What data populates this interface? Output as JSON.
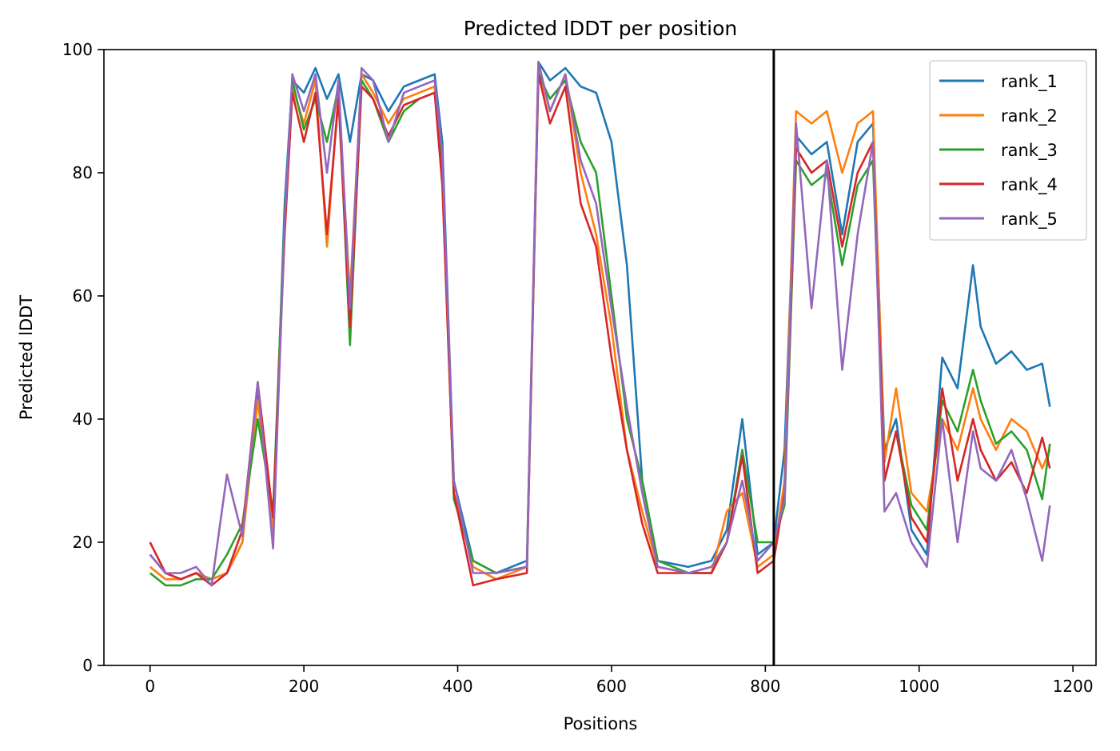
{
  "chart_data": {
    "type": "line",
    "title": "Predicted lDDT per position",
    "xlabel": "Positions",
    "ylabel": "Predicted lDDT",
    "xlim": [
      -60,
      1230
    ],
    "ylim": [
      0,
      100
    ],
    "xticks": [
      0,
      200,
      400,
      600,
      800,
      1000,
      1200
    ],
    "yticks": [
      0,
      20,
      40,
      60,
      80,
      100
    ],
    "grid": false,
    "legend_position": "top-right",
    "vline_x": 811,
    "series": [
      {
        "name": "rank_1",
        "color": "#1f77b4",
        "x": [
          0,
          20,
          40,
          60,
          80,
          100,
          120,
          140,
          160,
          175,
          185,
          200,
          215,
          230,
          245,
          260,
          275,
          290,
          310,
          330,
          350,
          370,
          380,
          395,
          420,
          450,
          490,
          505,
          520,
          540,
          560,
          580,
          600,
          620,
          640,
          660,
          700,
          730,
          750,
          770,
          790,
          811,
          825,
          840,
          860,
          880,
          900,
          920,
          940,
          955,
          970,
          990,
          1010,
          1030,
          1050,
          1070,
          1080,
          1100,
          1120,
          1140,
          1160,
          1170
        ],
        "y": [
          18,
          15,
          14,
          15,
          14,
          15,
          20,
          45,
          22,
          75,
          95,
          93,
          97,
          92,
          96,
          85,
          96,
          95,
          90,
          94,
          95,
          96,
          85,
          30,
          17,
          15,
          17,
          98,
          95,
          97,
          94,
          93,
          85,
          65,
          30,
          17,
          16,
          17,
          22,
          40,
          18,
          20,
          35,
          86,
          83,
          85,
          70,
          85,
          88,
          35,
          40,
          22,
          18,
          50,
          45,
          65,
          55,
          49,
          51,
          48,
          49,
          42
        ]
      },
      {
        "name": "rank_2",
        "color": "#ff7f0e",
        "x": [
          0,
          20,
          40,
          60,
          80,
          100,
          120,
          140,
          160,
          175,
          185,
          200,
          215,
          230,
          245,
          260,
          275,
          290,
          310,
          330,
          350,
          370,
          380,
          395,
          420,
          450,
          490,
          505,
          520,
          540,
          560,
          580,
          600,
          620,
          640,
          660,
          700,
          730,
          750,
          770,
          790,
          811,
          825,
          840,
          860,
          880,
          900,
          920,
          940,
          955,
          970,
          990,
          1010,
          1030,
          1050,
          1070,
          1080,
          1100,
          1120,
          1140,
          1160,
          1170
        ],
        "y": [
          16,
          14,
          14,
          15,
          14,
          15,
          20,
          43,
          22,
          72,
          94,
          88,
          95,
          68,
          93,
          60,
          96,
          93,
          88,
          92,
          93,
          94,
          80,
          28,
          16,
          14,
          16,
          97,
          90,
          96,
          80,
          70,
          55,
          35,
          25,
          16,
          15,
          15,
          25,
          28,
          16,
          18,
          30,
          90,
          88,
          90,
          80,
          88,
          90,
          33,
          45,
          28,
          25,
          40,
          35,
          45,
          40,
          35,
          40,
          38,
          32,
          35
        ]
      },
      {
        "name": "rank_3",
        "color": "#2ca02c",
        "x": [
          0,
          20,
          40,
          60,
          80,
          100,
          120,
          140,
          160,
          175,
          185,
          200,
          215,
          230,
          245,
          260,
          275,
          290,
          310,
          330,
          350,
          370,
          380,
          395,
          420,
          450,
          490,
          505,
          520,
          540,
          560,
          580,
          600,
          620,
          640,
          660,
          700,
          730,
          750,
          770,
          790,
          811,
          825,
          840,
          860,
          880,
          900,
          920,
          940,
          955,
          970,
          990,
          1010,
          1030,
          1050,
          1070,
          1080,
          1100,
          1120,
          1140,
          1160,
          1170
        ],
        "y": [
          15,
          13,
          13,
          14,
          14,
          18,
          23,
          40,
          25,
          73,
          95,
          87,
          92,
          85,
          94,
          52,
          95,
          92,
          85,
          90,
          92,
          93,
          82,
          27,
          17,
          15,
          16,
          96,
          92,
          95,
          85,
          80,
          60,
          40,
          30,
          17,
          15,
          15,
          20,
          35,
          20,
          20,
          26,
          82,
          78,
          80,
          65,
          78,
          82,
          30,
          38,
          26,
          22,
          43,
          38,
          48,
          43,
          36,
          38,
          35,
          27,
          36
        ]
      },
      {
        "name": "rank_4",
        "color": "#d62728",
        "x": [
          0,
          20,
          40,
          60,
          80,
          100,
          120,
          140,
          160,
          175,
          185,
          200,
          215,
          230,
          245,
          260,
          275,
          290,
          310,
          330,
          350,
          370,
          380,
          395,
          420,
          450,
          490,
          505,
          520,
          540,
          560,
          580,
          600,
          620,
          640,
          660,
          700,
          730,
          750,
          770,
          790,
          811,
          825,
          840,
          860,
          880,
          900,
          920,
          940,
          955,
          970,
          990,
          1010,
          1030,
          1050,
          1070,
          1080,
          1100,
          1120,
          1140,
          1160,
          1170
        ],
        "y": [
          20,
          15,
          14,
          15,
          13,
          15,
          22,
          46,
          24,
          70,
          93,
          85,
          93,
          70,
          92,
          55,
          94,
          92,
          86,
          91,
          92,
          93,
          78,
          28,
          13,
          14,
          15,
          96,
          88,
          94,
          75,
          68,
          50,
          35,
          23,
          15,
          15,
          15,
          20,
          34,
          15,
          17,
          28,
          84,
          80,
          82,
          68,
          80,
          85,
          30,
          38,
          24,
          20,
          45,
          30,
          40,
          35,
          30,
          33,
          28,
          37,
          32
        ]
      },
      {
        "name": "rank_5",
        "color": "#9467bd",
        "x": [
          0,
          20,
          40,
          60,
          80,
          100,
          120,
          140,
          160,
          175,
          185,
          200,
          215,
          230,
          245,
          260,
          275,
          290,
          310,
          330,
          350,
          370,
          380,
          395,
          420,
          450,
          490,
          505,
          520,
          540,
          560,
          580,
          600,
          620,
          640,
          660,
          700,
          730,
          750,
          770,
          790,
          811,
          825,
          840,
          860,
          880,
          900,
          920,
          940,
          955,
          970,
          990,
          1010,
          1030,
          1050,
          1070,
          1080,
          1100,
          1120,
          1140,
          1160,
          1170
        ],
        "y": [
          18,
          15,
          15,
          16,
          13,
          31,
          21,
          46,
          19,
          72,
          96,
          90,
          96,
          80,
          95,
          58,
          97,
          95,
          85,
          93,
          94,
          95,
          83,
          30,
          15,
          15,
          16,
          98,
          90,
          96,
          82,
          75,
          58,
          42,
          28,
          16,
          15,
          16,
          20,
          30,
          17,
          20,
          27,
          88,
          58,
          82,
          48,
          70,
          85,
          25,
          28,
          20,
          16,
          40,
          20,
          38,
          32,
          30,
          35,
          27,
          17,
          26
        ]
      }
    ]
  }
}
